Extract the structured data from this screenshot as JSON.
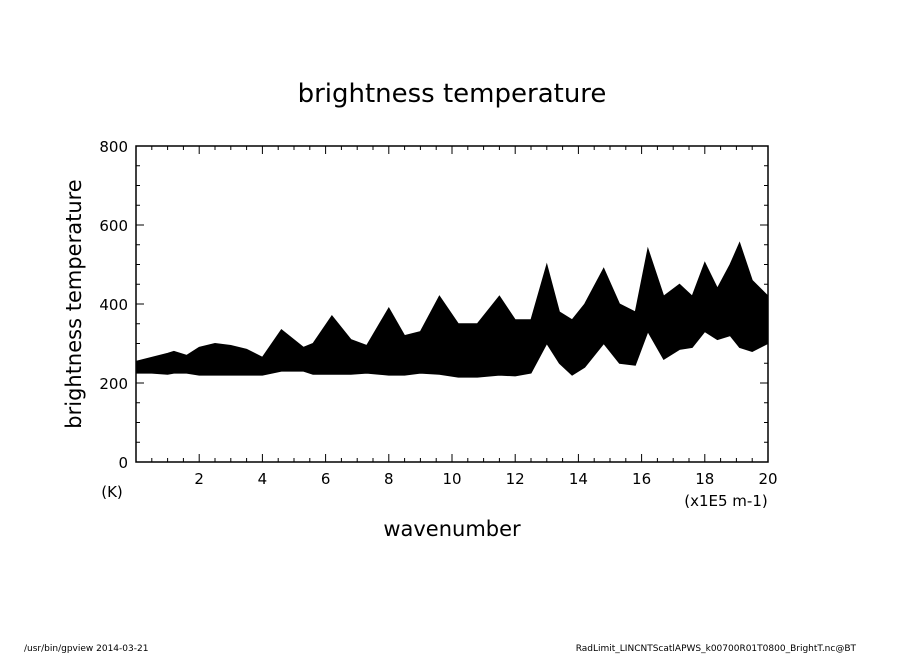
{
  "chart_data": {
    "type": "line",
    "title": "brightness temperature",
    "ylabel": "brightness temperature",
    "xlabel": "wavenumber",
    "y_unit": "(K)",
    "x_unit": "(x1E5 m-1)",
    "xlim": [
      0,
      20
    ],
    "ylim": [
      0,
      800
    ],
    "x_ticks": [
      "2",
      "4",
      "6",
      "8",
      "10",
      "12",
      "14",
      "16",
      "18",
      "20"
    ],
    "y_ticks": [
      "0",
      "200",
      "400",
      "600",
      "800"
    ],
    "grid": false,
    "series": [
      {
        "x": [
          0,
          0.5,
          1.0,
          1.2,
          1.6,
          2.0,
          2.5,
          3.0,
          3.5,
          4.0,
          4.6,
          5.3,
          5.6,
          6.2,
          6.8,
          7.3,
          8.0,
          8.5,
          9.0,
          9.6,
          10.2,
          10.8,
          11.5,
          12.0,
          12.5,
          13.0,
          13.4,
          13.8,
          14.2,
          14.8,
          15.3,
          15.8,
          16.2,
          16.7,
          17.2,
          17.6,
          18.0,
          18.4,
          18.8,
          19.1,
          19.5,
          20.0
        ],
        "upper": [
          255,
          265,
          275,
          280,
          270,
          290,
          300,
          295,
          285,
          265,
          335,
          290,
          300,
          370,
          310,
          295,
          390,
          320,
          330,
          420,
          350,
          350,
          420,
          360,
          360,
          500,
          380,
          360,
          400,
          490,
          400,
          380,
          540,
          420,
          450,
          420,
          505,
          440,
          500,
          555,
          460,
          420
        ],
        "lower": [
          225,
          225,
          222,
          225,
          225,
          220,
          220,
          220,
          220,
          220,
          230,
          230,
          222,
          222,
          222,
          225,
          220,
          220,
          225,
          222,
          215,
          215,
          220,
          218,
          225,
          300,
          250,
          220,
          240,
          300,
          250,
          245,
          330,
          260,
          285,
          290,
          330,
          310,
          320,
          290,
          280,
          300
        ]
      }
    ]
  },
  "footer": {
    "left": "/usr/bin/gpview   2014-03-21",
    "right": "RadLimit_LINCNTScatlAPWS_k00700R01T0800_BrightT.nc@BT"
  }
}
